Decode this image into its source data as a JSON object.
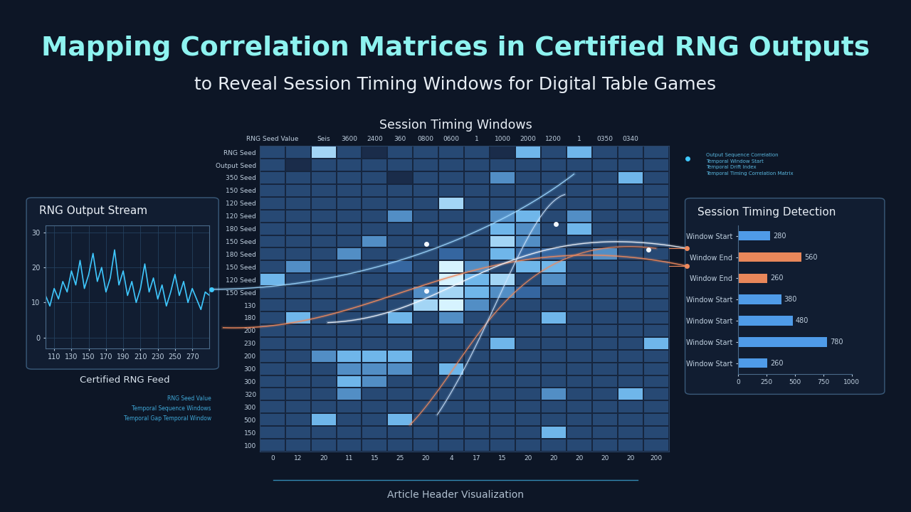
{
  "title": "Mapping Correlation Matrices in Certified RNG Outputs",
  "subtitle": "to Reveal Session Timing Windows for Digital Table Games",
  "footer": "Article Header Visualization",
  "chart_data": [
    {
      "type": "line",
      "title": "RNG Output Stream",
      "caption": "Certified RNG Feed",
      "x": [
        100,
        105,
        110,
        115,
        120,
        125,
        130,
        135,
        140,
        145,
        150,
        155,
        160,
        165,
        170,
        175,
        180,
        185,
        190,
        195,
        200,
        205,
        210,
        215,
        220,
        225,
        230,
        235,
        240,
        245,
        250,
        255,
        260,
        265,
        270,
        275,
        280,
        285,
        290
      ],
      "values": [
        12,
        9,
        14,
        11,
        16,
        13,
        19,
        15,
        22,
        14,
        18,
        24,
        16,
        20,
        13,
        17,
        25,
        15,
        19,
        12,
        16,
        10,
        14,
        21,
        13,
        17,
        11,
        15,
        9,
        13,
        18,
        12,
        16,
        10,
        14,
        11,
        8,
        13,
        12
      ],
      "color": "#3fc8ff",
      "xlim": [
        100,
        290
      ],
      "xticks": [
        110,
        130,
        150,
        170,
        190,
        210,
        230,
        250,
        270
      ],
      "ylim": [
        -3,
        32
      ],
      "yticks": [
        0,
        10,
        20,
        30
      ],
      "grid": true,
      "notes": [
        "RNG Seed Value",
        "Temporal Sequence Windows",
        "Temporal Gap Temporal Window"
      ]
    },
    {
      "type": "heatmap",
      "title": "Session Timing Windows",
      "categories": [
        "0",
        "12",
        "20",
        "11",
        "15",
        "25",
        "20",
        "4",
        "17",
        "15",
        "20",
        "20",
        "20",
        "20",
        "20",
        "200"
      ],
      "top_labels": [
        "RNG Seed Value",
        null,
        "Seis",
        "3600",
        "2400",
        "360",
        "0800",
        "0600",
        "1",
        "1000",
        "2000",
        "1200",
        "1",
        "0350",
        "0340",
        null
      ],
      "rows": [
        "RNG Seed",
        "Output Seed",
        "350 Seed",
        "150 Seed",
        "120 Seed",
        "120 Seed",
        "180 Seed",
        "150 Seed",
        "180 Seed",
        "150 Seed",
        "120 Seed",
        "150 Seed",
        "130",
        "180",
        "200",
        "230",
        "200",
        "300",
        "300",
        "320",
        "300",
        "500",
        "150",
        "100"
      ],
      "cells": [
        [
          3,
          3,
          7,
          3,
          2,
          3,
          3,
          3,
          3,
          2,
          6,
          3,
          6,
          3,
          3,
          3
        ],
        [
          3,
          2,
          3,
          3,
          3,
          3,
          3,
          3,
          3,
          3,
          3,
          3,
          3,
          3,
          3,
          3
        ],
        [
          3,
          3,
          3,
          3,
          3,
          2,
          3,
          3,
          3,
          5,
          3,
          3,
          3,
          3,
          6,
          3
        ],
        [
          3,
          3,
          3,
          3,
          3,
          3,
          3,
          3,
          3,
          3,
          3,
          3,
          3,
          3,
          3,
          3
        ],
        [
          3,
          3,
          3,
          3,
          3,
          3,
          3,
          7,
          3,
          3,
          3,
          3,
          3,
          3,
          3,
          3
        ],
        [
          3,
          3,
          3,
          3,
          3,
          5,
          3,
          3,
          3,
          5,
          6,
          3,
          5,
          3,
          3,
          3
        ],
        [
          3,
          3,
          3,
          3,
          3,
          3,
          3,
          3,
          3,
          6,
          5,
          3,
          6,
          3,
          3,
          3
        ],
        [
          3,
          3,
          3,
          3,
          5,
          3,
          3,
          3,
          3,
          7,
          5,
          3,
          3,
          3,
          3,
          3
        ],
        [
          3,
          3,
          3,
          5,
          3,
          3,
          3,
          4,
          3,
          6,
          4,
          4,
          3,
          5,
          3,
          3
        ],
        [
          3,
          5,
          3,
          3,
          3,
          4,
          3,
          8,
          5,
          3,
          6,
          6,
          3,
          3,
          3,
          3
        ],
        [
          6,
          3,
          3,
          3,
          3,
          3,
          3,
          8,
          6,
          7,
          3,
          5,
          3,
          3,
          3,
          3
        ],
        [
          3,
          3,
          3,
          3,
          3,
          3,
          5,
          7,
          6,
          5,
          4,
          3,
          3,
          3,
          3,
          3
        ],
        [
          3,
          3,
          3,
          3,
          3,
          3,
          7,
          8,
          5,
          3,
          3,
          3,
          3,
          3,
          3,
          3
        ],
        [
          3,
          6,
          3,
          3,
          3,
          6,
          3,
          5,
          3,
          3,
          3,
          6,
          3,
          3,
          3,
          3
        ],
        [
          3,
          3,
          3,
          3,
          3,
          3,
          3,
          3,
          3,
          3,
          3,
          3,
          3,
          3,
          3,
          3
        ],
        [
          3,
          3,
          3,
          3,
          3,
          3,
          3,
          3,
          3,
          6,
          3,
          3,
          3,
          3,
          3,
          6
        ],
        [
          3,
          3,
          5,
          6,
          6,
          6,
          3,
          3,
          3,
          3,
          3,
          3,
          3,
          3,
          3,
          3
        ],
        [
          3,
          3,
          3,
          5,
          5,
          5,
          3,
          6,
          3,
          3,
          3,
          3,
          3,
          3,
          3,
          3
        ],
        [
          3,
          3,
          3,
          6,
          5,
          3,
          3,
          3,
          3,
          3,
          3,
          3,
          3,
          3,
          3,
          3
        ],
        [
          3,
          3,
          3,
          5,
          3,
          3,
          3,
          3,
          3,
          3,
          3,
          5,
          3,
          3,
          6,
          3
        ],
        [
          3,
          3,
          3,
          3,
          3,
          3,
          3,
          3,
          3,
          3,
          3,
          3,
          3,
          3,
          3,
          3
        ],
        [
          3,
          3,
          6,
          3,
          3,
          6,
          3,
          3,
          3,
          3,
          3,
          3,
          3,
          3,
          3,
          3
        ],
        [
          3,
          3,
          3,
          3,
          3,
          3,
          3,
          3,
          3,
          3,
          3,
          6,
          3,
          3,
          3,
          3
        ],
        [
          3,
          3,
          3,
          3,
          3,
          3,
          3,
          3,
          3,
          3,
          3,
          3,
          3,
          3,
          3,
          3
        ]
      ],
      "notes": [
        "Output Sequence Correlation",
        "Temporal Window Start",
        "Temporal Drift Index",
        "Temporal Timing Correlation Matrix"
      ]
    },
    {
      "type": "bar",
      "title": "Session Timing Detection",
      "orientation": "horizontal",
      "categories": [
        "Window Start",
        "Window End",
        "Window End",
        "Window Start",
        "Window Start",
        "Window Start",
        "Window Start"
      ],
      "values": [
        280,
        560,
        260,
        380,
        480,
        780,
        260
      ],
      "colors": [
        "#4f9be8",
        "#e8875a",
        "#e8875a",
        "#4f9be8",
        "#4f9be8",
        "#4f9be8",
        "#4f9be8"
      ],
      "xlim": [
        0,
        1000
      ],
      "xticks": [
        0,
        250,
        500,
        750,
        1000
      ],
      "data_labels": true
    }
  ]
}
